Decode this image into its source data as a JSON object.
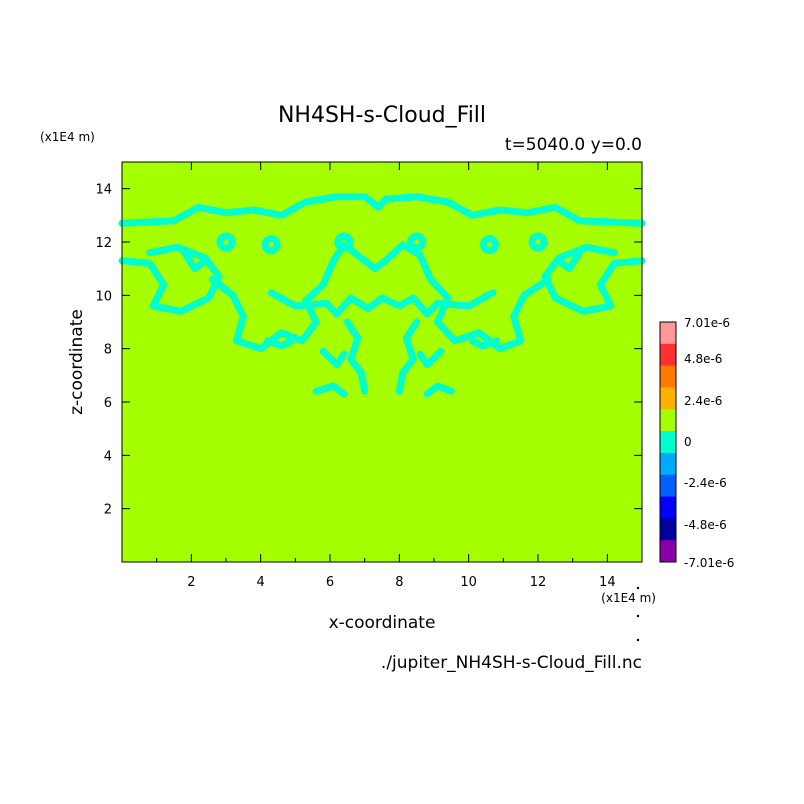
{
  "chart_data": {
    "type": "heatmap",
    "title": "NH4SH-s-Cloud_Fill",
    "subtitle": "t=5040.0 y=0.0",
    "xlabel": "x-coordinate",
    "ylabel": "z-coordinate",
    "x_unit": "(x1E4 m)",
    "y_unit": "(x1E4 m)",
    "xlim": [
      0,
      15
    ],
    "ylim": [
      0,
      15
    ],
    "x_ticks": [
      "2",
      "4",
      "6",
      "8",
      "10",
      "12",
      "14"
    ],
    "y_ticks": [
      "2",
      "4",
      "6",
      "8",
      "10",
      "12",
      "14"
    ],
    "background_value": 0,
    "features": [
      {
        "value": "-1.2e-6",
        "description": "cyan cloud-fill negative region",
        "z_range": [
          6.2,
          13.7
        ],
        "x_range": [
          0,
          15
        ]
      }
    ],
    "colorbar": {
      "labels": [
        "7.01e-6",
        "4.8e-6",
        "2.4e-6",
        "0",
        "-2.4e-6",
        "-4.8e-6",
        "-7.01e-6"
      ],
      "colors": [
        "#ff9999",
        "#ff3030",
        "#ff7a00",
        "#ffb000",
        "#a6ff00",
        "#00ffcc",
        "#00aaff",
        "#0060ff",
        "#0000ff",
        "#0000a0",
        "#8800a8"
      ]
    },
    "filename": "./jupiter_NH4SH-s-Cloud_Fill.nc"
  }
}
